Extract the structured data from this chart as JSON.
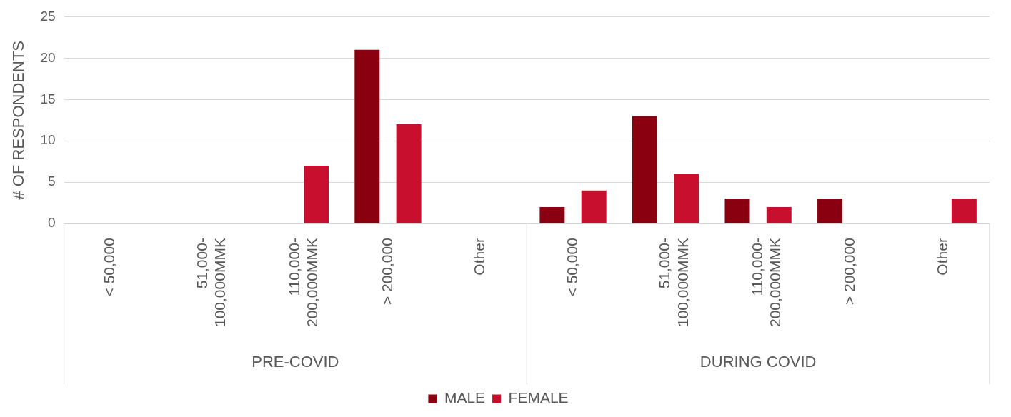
{
  "chart_data": {
    "type": "bar",
    "ylabel": "# OF RESPONDENTS",
    "categories": [
      "< 50,000",
      "51,000-100,000MMK",
      "110,000-200,000MMK",
      "> 200,000",
      "Other",
      "< 50,000",
      "51,000-100,000MMK",
      "110,000-200,000MMK",
      "> 200,000",
      "Other"
    ],
    "annotations": [
      "PRE-COVID",
      "DURING COVID"
    ],
    "series": [
      {
        "name": "MALE",
        "color": "#8b0011",
        "values": [
          0,
          0,
          0,
          21,
          0,
          2,
          13,
          3,
          3,
          0
        ]
      },
      {
        "name": "FEMALE",
        "color": "#c8102e",
        "values": [
          0,
          0,
          7,
          12,
          0,
          4,
          6,
          2,
          0,
          3
        ]
      }
    ],
    "ylim": [
      0,
      25
    ],
    "yticks": [
      0,
      5,
      10,
      15,
      20,
      25
    ],
    "grid": "y",
    "legend": "bottom"
  }
}
